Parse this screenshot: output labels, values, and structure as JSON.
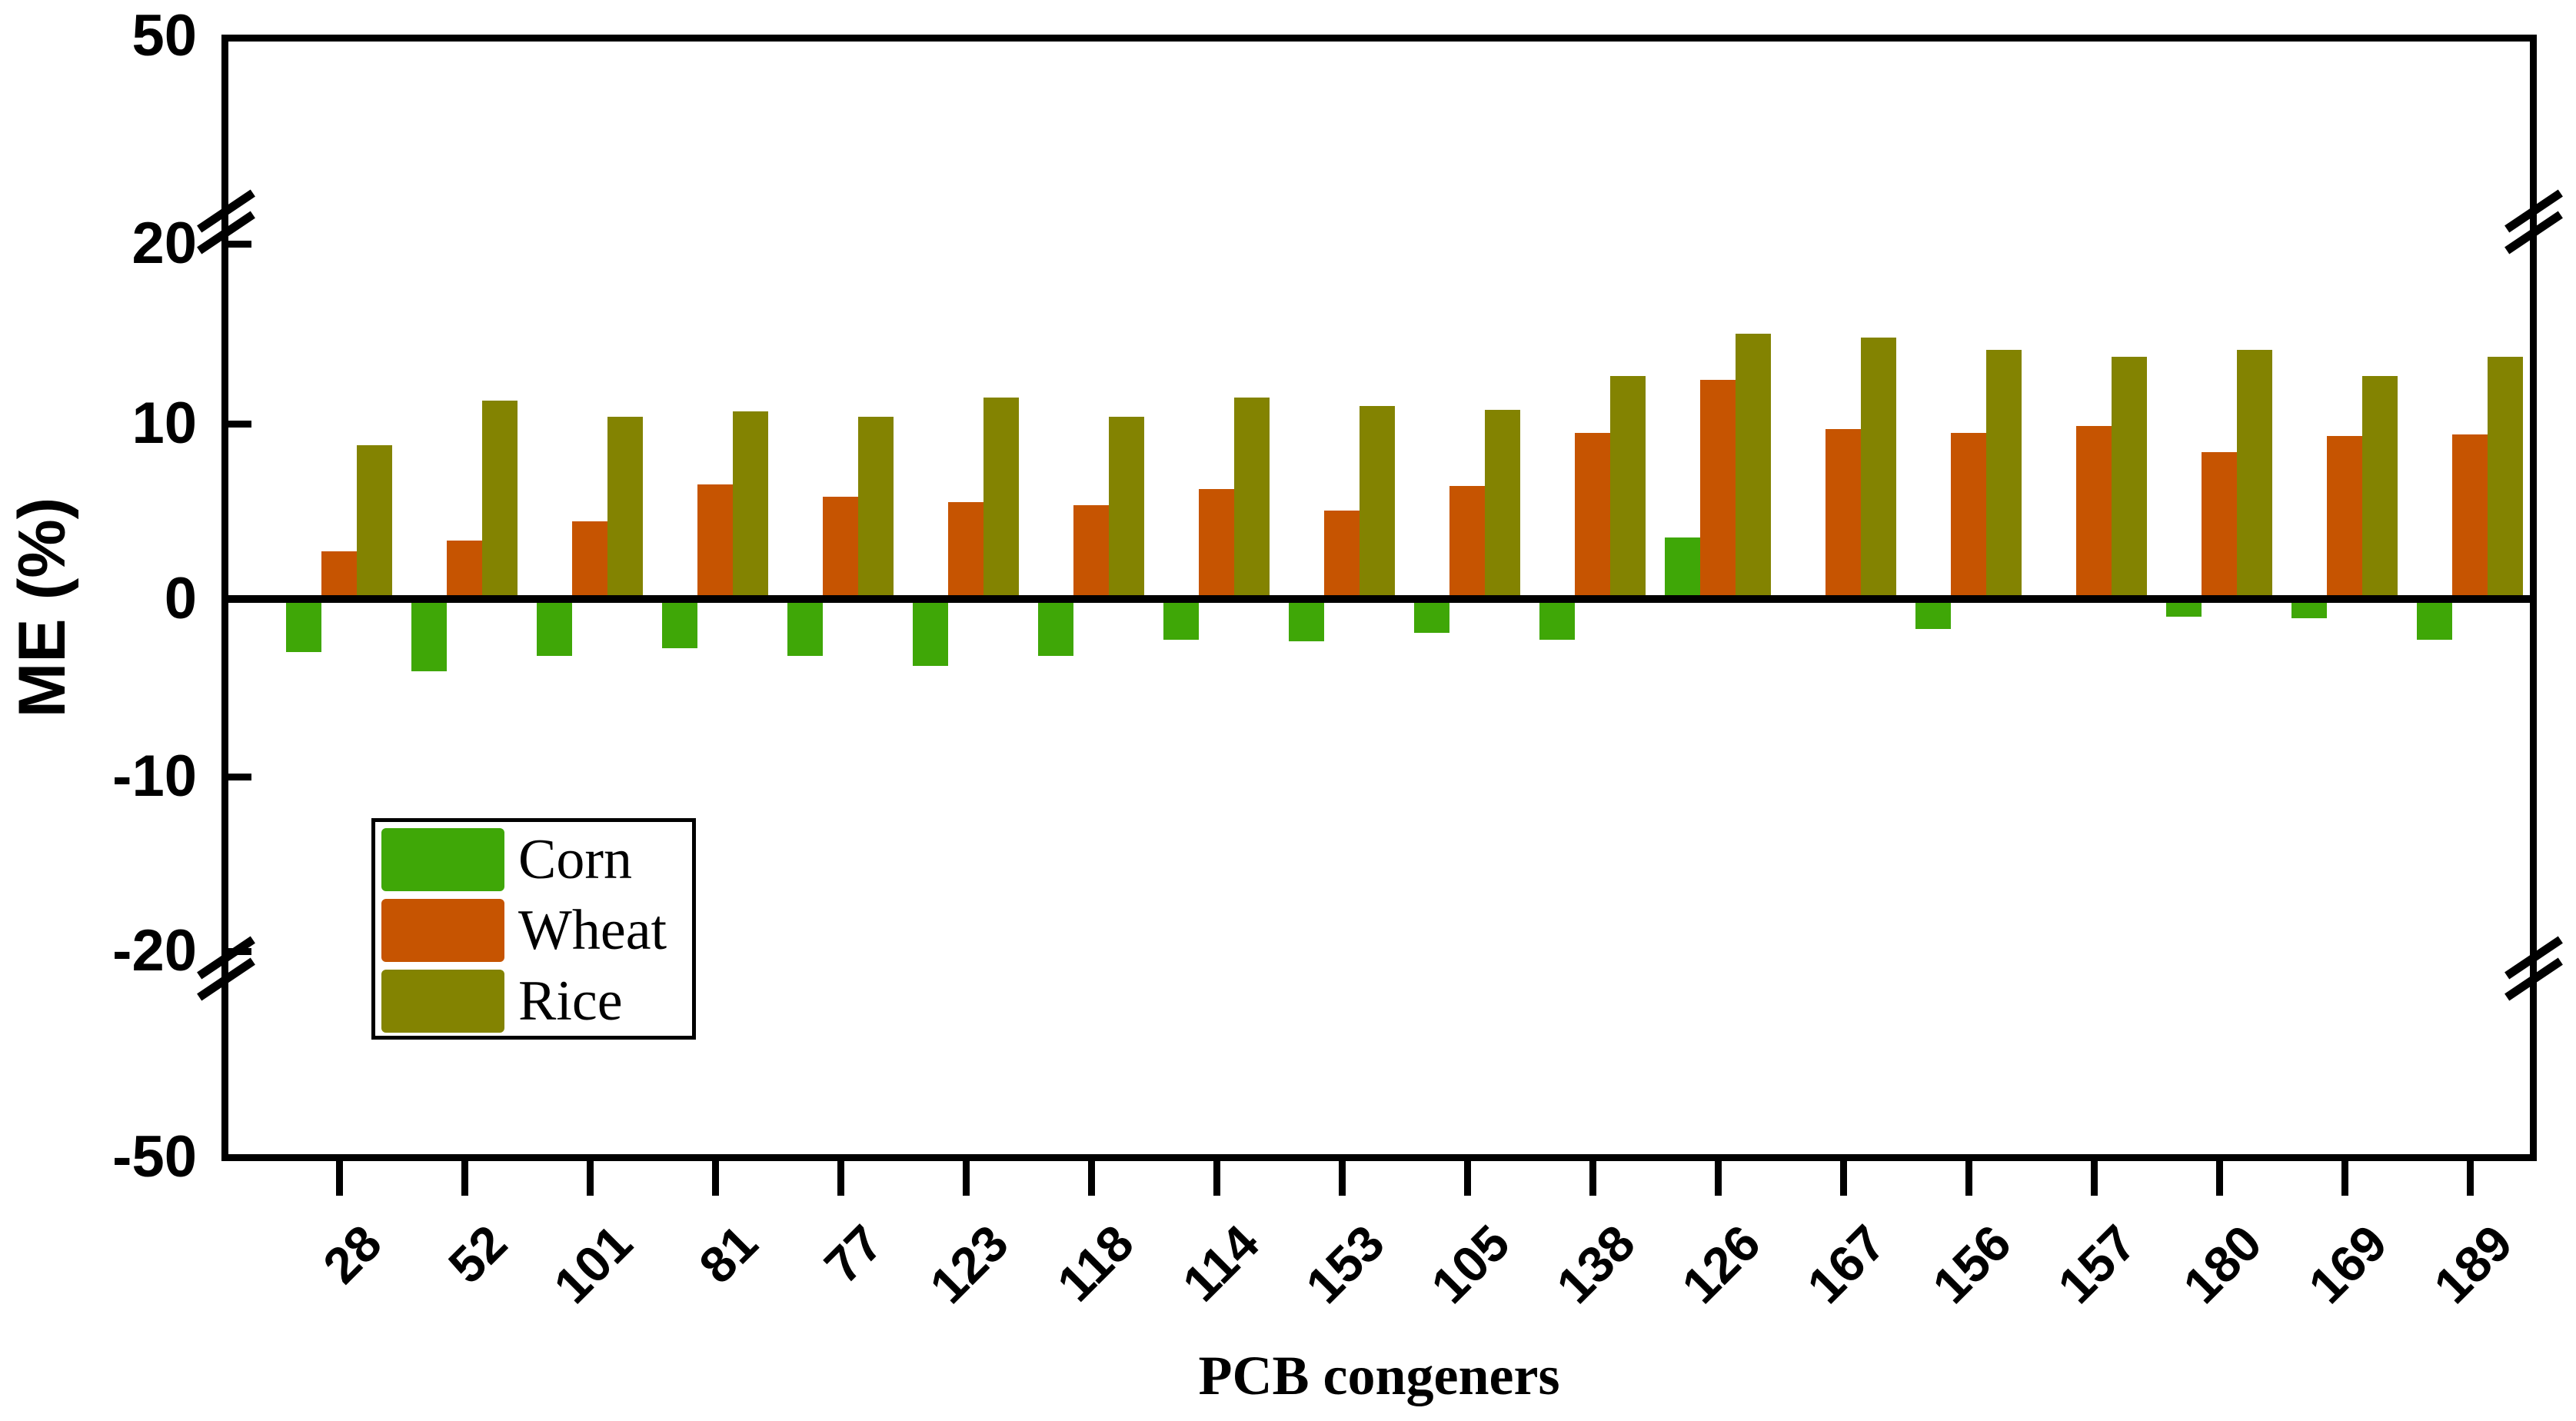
{
  "figure": {
    "ylabel": "ME (%)",
    "xlabel": "PCB congeners"
  },
  "chart_data": {
    "type": "bar",
    "title": "",
    "xlabel": "PCB congeners",
    "ylabel": "ME (%)",
    "categories": [
      "28",
      "52",
      "101",
      "81",
      "77",
      "123",
      "118",
      "114",
      "153",
      "105",
      "138",
      "126",
      "167",
      "156",
      "157",
      "180",
      "169",
      "189"
    ],
    "series": [
      {
        "name": "Corn",
        "color": "#3FA707",
        "values": [
          -3.0,
          -4.1,
          -3.2,
          -2.8,
          -3.2,
          -3.8,
          -3.2,
          -2.3,
          -2.4,
          -1.9,
          -2.3,
          3.5,
          0,
          -1.7,
          0,
          -1.0,
          -1.1,
          -2.3
        ]
      },
      {
        "name": "Wheat",
        "color": "#C65401",
        "values": [
          2.7,
          3.3,
          4.4,
          6.5,
          5.8,
          5.5,
          5.3,
          6.2,
          5.0,
          6.4,
          9.4,
          12.4,
          9.6,
          9.4,
          9.8,
          8.3,
          9.2,
          9.3
        ]
      },
      {
        "name": "Rice",
        "color": "#838301",
        "values": [
          8.7,
          11.2,
          10.3,
          10.6,
          10.3,
          11.4,
          10.3,
          11.4,
          10.9,
          10.7,
          12.6,
          15.0,
          14.8,
          14.1,
          13.7,
          14.1,
          12.6,
          13.7
        ]
      }
    ],
    "y_axis": {
      "tick_labels": [
        "50",
        "20",
        "10",
        "0",
        "-10",
        "-20",
        "-50"
      ],
      "tick_values": [
        50,
        20,
        10,
        0,
        -10,
        -20,
        -50
      ],
      "ylim": [
        -50,
        50
      ],
      "broken_axis": true,
      "breaks": [
        [
          20,
          50
        ],
        [
          -50,
          -20
        ]
      ]
    },
    "legend": {
      "position": "inside-left",
      "entries": [
        "Corn",
        "Wheat",
        "Rice"
      ]
    },
    "grid": false,
    "axis_color": "#000000",
    "background": "#FFFFFF"
  }
}
